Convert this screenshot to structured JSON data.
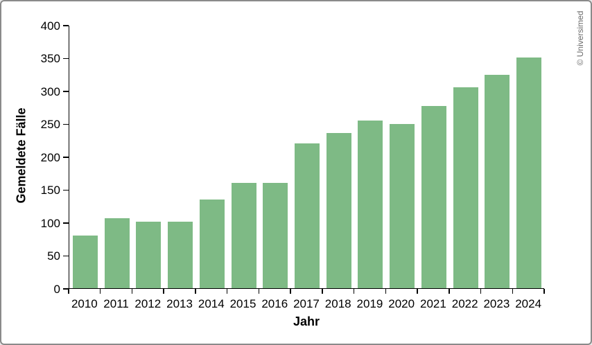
{
  "watermark": "© Universimed",
  "colors": {
    "bar": "#7eba85",
    "axis": "#000000",
    "text": "#000000",
    "watermark": "#6b6b6b",
    "frame_border": "#8a8a8a",
    "background": "#ffffff"
  },
  "chart_data": {
    "type": "bar",
    "title": "",
    "xlabel": "Jahr",
    "ylabel": "Gemeldete Fälle",
    "categories": [
      "2010",
      "2011",
      "2012",
      "2013",
      "2014",
      "2015",
      "2016",
      "2017",
      "2018",
      "2019",
      "2020",
      "2021",
      "2022",
      "2023",
      "2024"
    ],
    "values": [
      80,
      106,
      101,
      101,
      135,
      160,
      160,
      220,
      236,
      255,
      250,
      277,
      305,
      324,
      351
    ],
    "ylim": [
      0,
      400
    ],
    "yticks": [
      0,
      50,
      100,
      150,
      200,
      250,
      300,
      350,
      400
    ],
    "grid": false,
    "legend": null,
    "bar_color": "#7eba85"
  }
}
